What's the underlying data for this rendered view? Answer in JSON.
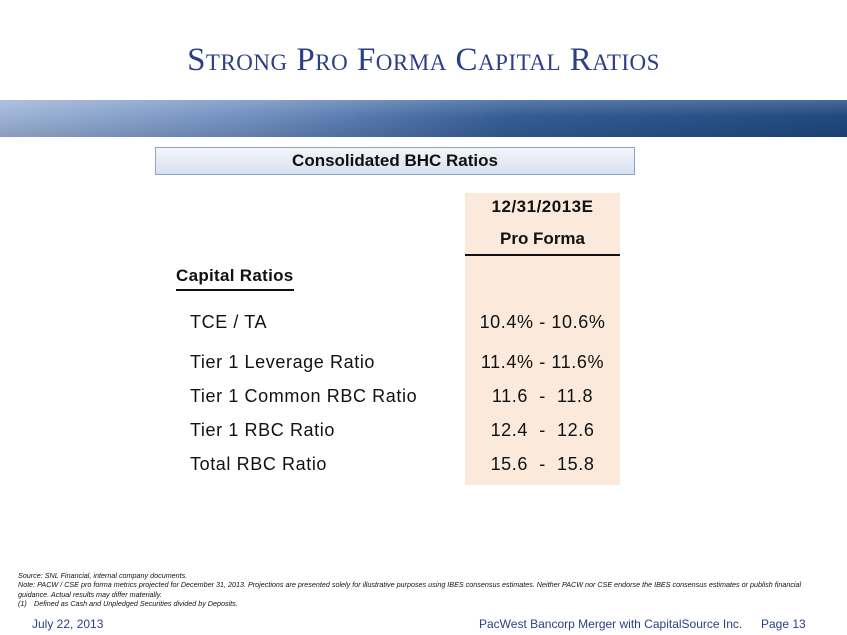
{
  "title": "Strong Pro Forma Capital Ratios",
  "section_header": "Consolidated BHC Ratios",
  "table": {
    "column_date": "12/31/2013E",
    "column_sub": "Pro Forma",
    "group_label": "Capital Ratios",
    "rows": [
      {
        "label": "TCE / TA",
        "value": "10.4% - 10.6%"
      },
      {
        "label": "Tier 1 Leverage Ratio",
        "value": "11.4% - 11.6%"
      },
      {
        "label": "Tier 1 Common RBC Ratio",
        "value": "11.6  -  11.8"
      },
      {
        "label": "Tier 1 RBC Ratio",
        "value": "12.4  -  12.6"
      },
      {
        "label": "Total RBC Ratio",
        "value": "15.6  -  15.8"
      }
    ]
  },
  "footnotes": {
    "source": "Source: SNL Financial, internal company documents.",
    "note": "Note: PACW / CSE pro forma metrics projected for December 31, 2013. Projections are presented solely for illustrative purposes using IBES consensus estimates. Neither PACW nor CSE endorse the IBES consensus estimates or publish financial guidance. Actual results may differ materially.",
    "fn1_num": "(1)",
    "fn1_text": "Defined as Cash and Unpledged Securities divided by Deposits."
  },
  "footer": {
    "date": "July 22, 2013",
    "center": "PacWest Bancorp Merger with CapitalSource Inc.",
    "page": "Page 13"
  },
  "colors": {
    "title": "#2a3f86",
    "highlight": "#fbe9dc",
    "band_dark": "#20497f"
  }
}
